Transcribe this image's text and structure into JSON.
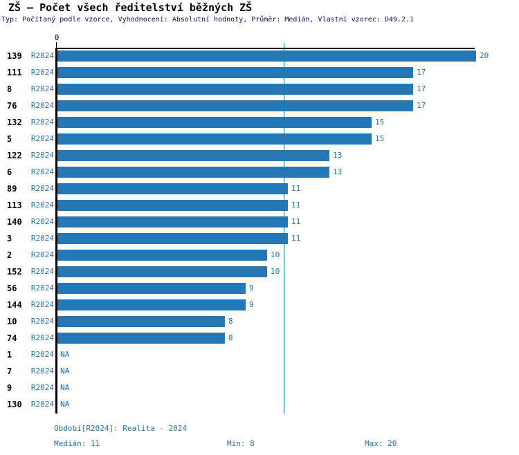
{
  "page": {
    "title": "ZŠ – Počet všech ředitelství běžných ZŠ",
    "subtitle": "Typ: Počítaný podle vzorce, Vyhodnocení: Absolutní hodnoty, Průměr: Medián, Vlastní vzorec: D49.2.1"
  },
  "axis": {
    "zero_label": "0"
  },
  "footer": {
    "period": "Období[R2024]: Realita - 2024",
    "median": "Medián: 11",
    "min": "Min: 8",
    "max": "Max: 20"
  },
  "colors": {
    "bar": "#2277b4",
    "blue_text": "#1f6fa8",
    "subtitle_text": "#0f0f5a",
    "axis": "#000000"
  },
  "chart_data": {
    "type": "bar",
    "orientation": "horizontal",
    "title": "ZŠ – Počet všech ředitelství běžných ZŠ",
    "subtitle": "Typ: Počítaný podle vzorce, Vyhodnocení: Absolutní hodnoty, Průměr: Medián, Vlastní vzorec: D49.2.1",
    "xlabel": "",
    "ylabel": "",
    "xlim": [
      0,
      20
    ],
    "x_ticks": [
      "0"
    ],
    "grid": false,
    "legend": false,
    "median_reference_line": 11,
    "series_name": "R2024",
    "na_text": "NA",
    "rows": [
      {
        "category": "139",
        "period": "R2024",
        "value": 20,
        "label": "20"
      },
      {
        "category": "111",
        "period": "R2024",
        "value": 17,
        "label": "17"
      },
      {
        "category": "8",
        "period": "R2024",
        "value": 17,
        "label": "17"
      },
      {
        "category": "76",
        "period": "R2024",
        "value": 17,
        "label": "17"
      },
      {
        "category": "132",
        "period": "R2024",
        "value": 15,
        "label": "15"
      },
      {
        "category": "5",
        "period": "R2024",
        "value": 15,
        "label": "15"
      },
      {
        "category": "122",
        "period": "R2024",
        "value": 13,
        "label": "13"
      },
      {
        "category": "6",
        "period": "R2024",
        "value": 13,
        "label": "13"
      },
      {
        "category": "89",
        "period": "R2024",
        "value": 11,
        "label": "11"
      },
      {
        "category": "113",
        "period": "R2024",
        "value": 11,
        "label": "11"
      },
      {
        "category": "140",
        "period": "R2024",
        "value": 11,
        "label": "11"
      },
      {
        "category": "3",
        "period": "R2024",
        "value": 11,
        "label": "11"
      },
      {
        "category": "2",
        "period": "R2024",
        "value": 10,
        "label": "10"
      },
      {
        "category": "152",
        "period": "R2024",
        "value": 10,
        "label": "10"
      },
      {
        "category": "56",
        "period": "R2024",
        "value": 9,
        "label": "9"
      },
      {
        "category": "144",
        "period": "R2024",
        "value": 9,
        "label": "9"
      },
      {
        "category": "10",
        "period": "R2024",
        "value": 8,
        "label": "8"
      },
      {
        "category": "74",
        "period": "R2024",
        "value": 8,
        "label": "8"
      },
      {
        "category": "1",
        "period": "R2024",
        "value": null,
        "label": "NA"
      },
      {
        "category": "7",
        "period": "R2024",
        "value": null,
        "label": "NA"
      },
      {
        "category": "9",
        "period": "R2024",
        "value": null,
        "label": "NA"
      },
      {
        "category": "130",
        "period": "R2024",
        "value": null,
        "label": "NA"
      }
    ],
    "stats": {
      "median": 11,
      "min": 8,
      "max": 20
    }
  }
}
